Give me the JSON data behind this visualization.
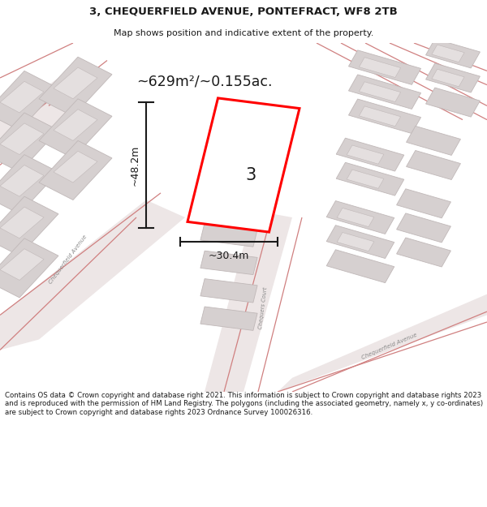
{
  "title": "3, CHEQUERFIELD AVENUE, PONTEFRACT, WF8 2TB",
  "subtitle": "Map shows position and indicative extent of the property.",
  "footer": "Contains OS data © Crown copyright and database right 2021. This information is subject to Crown copyright and database rights 2023 and is reproduced with the permission of HM Land Registry. The polygons (including the associated geometry, namely x, y co-ordinates) are subject to Crown copyright and database rights 2023 Ordnance Survey 100026316.",
  "area_label": "~629m²/~0.155ac.",
  "width_label": "~30.4m",
  "height_label": "~48.2m",
  "plot_number": "3",
  "map_bg": "#f7f3f3",
  "road_fill": "#ede6e6",
  "building_fill": "#d6d0d0",
  "building_edge": "#c0b8b8",
  "plot_edge": "#ff0000",
  "plot_fill": "#ffffff",
  "dim_color": "#1a1a1a",
  "title_color": "#1a1a1a",
  "road_line_color": "#d08080",
  "street_label_color": "#888888"
}
